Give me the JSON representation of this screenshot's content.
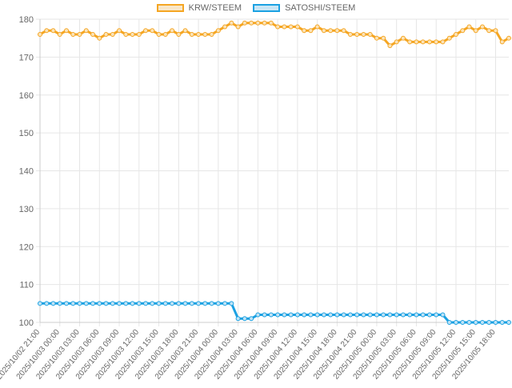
{
  "chart_data": {
    "type": "line",
    "title": "",
    "xlabel": "",
    "ylabel": "",
    "ylim": [
      100,
      180
    ],
    "yticks": [
      100,
      110,
      120,
      130,
      140,
      150,
      160,
      170,
      180
    ],
    "grid": true,
    "legend_position": "top-center",
    "x_tick_labels": [
      "2025/10/02 21:00",
      "2025/10/03 00:00",
      "2025/10/03 03:00",
      "2025/10/03 06:00",
      "2025/10/03 09:00",
      "2025/10/03 12:00",
      "2025/10/03 15:00",
      "2025/10/03 18:00",
      "2025/10/03 21:00",
      "2025/10/04 00:00",
      "2025/10/04 03:00",
      "2025/10/04 06:00",
      "2025/10/04 09:00",
      "2025/10/04 12:00",
      "2025/10/04 15:00",
      "2025/10/04 18:00",
      "2025/10/04 21:00",
      "2025/10/05 00:00",
      "2025/10/05 03:00",
      "2025/10/05 06:00",
      "2025/10/05 09:00",
      "2025/10/05 12:00",
      "2025/10/05 15:00",
      "2025/10/05 18:00"
    ],
    "series": [
      {
        "name": "KRW/STEEM",
        "color": "#f5a623",
        "values": [
          176,
          177,
          177,
          176,
          177,
          176,
          176,
          177,
          176,
          175,
          176,
          176,
          177,
          176,
          176,
          176,
          177,
          177,
          176,
          176,
          177,
          176,
          177,
          176,
          176,
          176,
          176,
          177,
          178,
          179,
          178,
          179,
          179,
          179,
          179,
          179,
          178,
          178,
          178,
          178,
          177,
          177,
          178,
          177,
          177,
          177,
          177,
          176,
          176,
          176,
          176,
          175,
          175,
          173,
          174,
          175,
          174,
          174,
          174,
          174,
          174,
          174,
          175,
          176,
          177,
          178,
          177,
          178,
          177,
          177,
          174,
          175
        ]
      },
      {
        "name": "SATOSHI/STEEM",
        "color": "#1ba1e2",
        "values": [
          105,
          105,
          105,
          105,
          105,
          105,
          105,
          105,
          105,
          105,
          105,
          105,
          105,
          105,
          105,
          105,
          105,
          105,
          105,
          105,
          105,
          105,
          105,
          105,
          105,
          105,
          105,
          105,
          105,
          105,
          101,
          101,
          101,
          102,
          102,
          102,
          102,
          102,
          102,
          102,
          102,
          102,
          102,
          102,
          102,
          102,
          102,
          102,
          102,
          102,
          102,
          102,
          102,
          102,
          102,
          102,
          102,
          102,
          102,
          102,
          102,
          102,
          100,
          100,
          100,
          100,
          100,
          100,
          100,
          100,
          100,
          100
        ]
      }
    ]
  }
}
